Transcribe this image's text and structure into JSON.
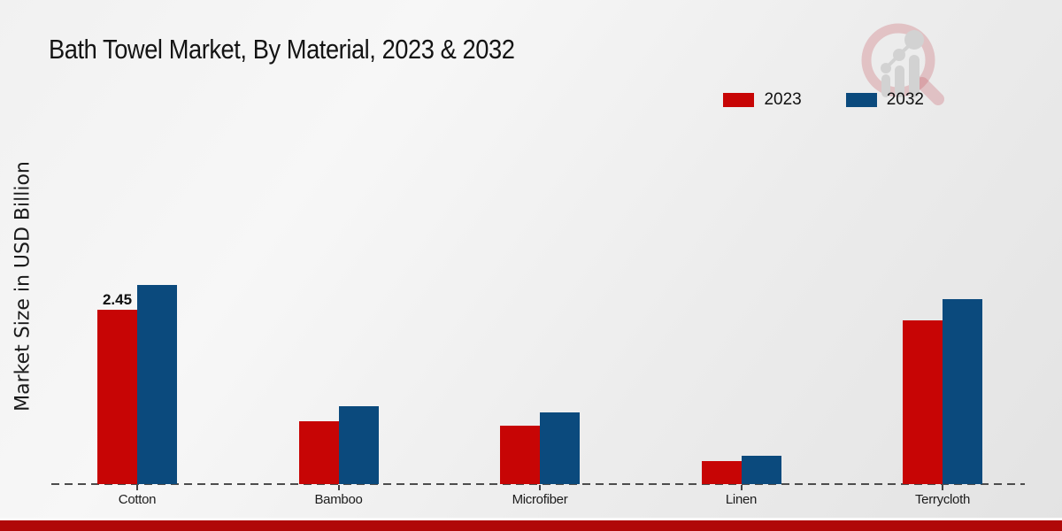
{
  "title": "Bath Towel Market, By Material, 2023 & 2032",
  "chart_data": {
    "type": "bar",
    "title": "Bath Towel Market, By Material, 2023 & 2032",
    "xlabel": "",
    "ylabel": "Market Size in USD Billion",
    "categories": [
      "Cotton",
      "Bamboo",
      "Microfiber",
      "Linen",
      "Terrycloth"
    ],
    "series": [
      {
        "name": "2023",
        "color": "#c70505",
        "values": [
          2.45,
          0.88,
          0.82,
          0.32,
          2.3
        ],
        "data_labels": [
          "2.45",
          "",
          "",
          "",
          ""
        ]
      },
      {
        "name": "2032",
        "color": "#0b4a7d",
        "values": [
          2.8,
          1.09,
          1.01,
          0.4,
          2.6
        ],
        "data_labels": [
          "",
          "",
          "",
          "",
          ""
        ]
      }
    ],
    "ylim": [
      0,
      3.1
    ],
    "grid": false,
    "legend_position": "top-right",
    "x_axis_style": "dashed-baseline",
    "y_axis_ticks": "none"
  },
  "icons": {
    "watermark": "magnifier-growth-chart-logo"
  },
  "colors": {
    "series_2023": "#c70505",
    "series_2032": "#0b4a7d",
    "footer_bar": "#b00808",
    "baseline": "#4d4d4d",
    "logo_ring": "rgba(197,80,90,0.30)",
    "logo_bars": "#d0d0d0"
  }
}
